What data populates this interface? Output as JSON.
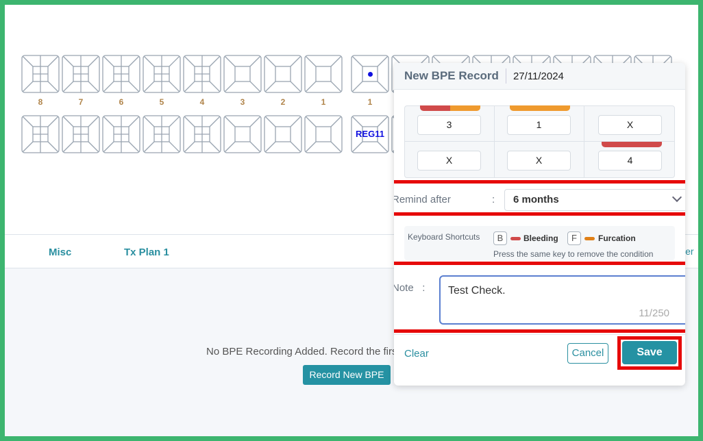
{
  "chart": {
    "upper_left_labels": [
      "8",
      "7",
      "6",
      "5",
      "4",
      "3",
      "2",
      "1"
    ],
    "upper_right_labels": [
      "1"
    ],
    "marker_text": "REG11",
    "label_color": "#b0844a",
    "marker_color": "#1010e0"
  },
  "tabs": [
    {
      "label": "Misc"
    },
    {
      "label": "Tx Plan 1"
    }
  ],
  "tabs_right_partial": "ler",
  "empty_state": {
    "message": "No BPE Recording Added. Record the first",
    "button": "Record New BPE"
  },
  "popup": {
    "title": "New BPE Record",
    "date": "27/11/2024",
    "grid": [
      {
        "value": "3",
        "conditions": [
          "bleeding",
          "furcation"
        ]
      },
      {
        "value": "1",
        "conditions": [
          "furcation"
        ]
      },
      {
        "value": "X",
        "conditions": []
      },
      {
        "value": "X",
        "conditions": []
      },
      {
        "value": "X",
        "conditions": []
      },
      {
        "value": "4",
        "conditions": [
          "bleeding"
        ]
      }
    ],
    "remind_label": "Remind after",
    "remind_colon": ":",
    "remind_value": "6 months",
    "shortcuts": {
      "title": "Keyboard Shortcuts",
      "bleeding_key": "B",
      "bleeding_label": "Bleeding",
      "furcation_key": "F",
      "furcation_label": "Furcation",
      "hint": "Press the same key to remove the condition"
    },
    "note_label": "Note",
    "note_colon": ":",
    "note_value": "Test Check.",
    "note_count": "11/250",
    "clear": "Clear",
    "cancel": "Cancel",
    "save": "Save"
  },
  "colors": {
    "bleeding": "#d04a4a",
    "furcation": "#ef9a2e",
    "accent": "#2592a3",
    "highlight": "#e60a0a",
    "frame": "#3db56f"
  }
}
